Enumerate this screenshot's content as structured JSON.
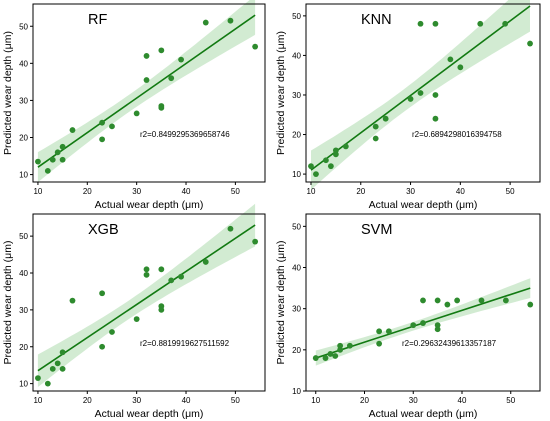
{
  "colors": {
    "points": "#2e8b2e",
    "fit_line": "#127a12",
    "band": "#bfe3bf"
  },
  "chart_data": [
    {
      "type": "scatter",
      "title": "RF",
      "xlabel": "Actual wear depth (μm)",
      "ylabel": "Predicted wear depth (μm)",
      "annotation": "r2=0.8499295369658746",
      "xlim": [
        9,
        56
      ],
      "ylim": [
        8,
        56
      ],
      "xticks": [
        10,
        20,
        30,
        40,
        50
      ],
      "yticks": [
        10,
        20,
        30,
        40,
        50
      ],
      "fit": {
        "x": [
          10,
          54
        ],
        "y": [
          12.0,
          53.0
        ]
      },
      "x": [
        10,
        12,
        13,
        14,
        15,
        15,
        17,
        23,
        23,
        25,
        30,
        32,
        32,
        35,
        35,
        35,
        37,
        39,
        44,
        49,
        54
      ],
      "y": [
        13.5,
        11,
        14,
        16,
        14,
        17.5,
        22,
        19.5,
        24,
        23,
        26.5,
        35.5,
        42,
        28,
        28.5,
        43.5,
        36,
        41,
        51,
        51.5,
        44.5
      ]
    },
    {
      "type": "scatter",
      "title": "KNN",
      "xlabel": "Actual wear depth (μm)",
      "ylabel": "Predicted wear depth (μm)",
      "annotation": "r2=0.6894298016394758",
      "xlim": [
        9,
        56
      ],
      "ylim": [
        8,
        53
      ],
      "xticks": [
        10,
        20,
        30,
        40,
        50
      ],
      "yticks": [
        10,
        20,
        30,
        40,
        50
      ],
      "fit": {
        "x": [
          10,
          54
        ],
        "y": [
          11.0,
          52.5
        ]
      },
      "x": [
        10,
        11,
        13,
        14,
        15,
        15,
        17,
        23,
        23,
        25,
        30,
        32,
        32,
        35,
        35,
        35,
        38,
        40,
        44,
        49,
        54
      ],
      "y": [
        12,
        10,
        13.5,
        12,
        15,
        16,
        17,
        19,
        22,
        24,
        29,
        30.5,
        48,
        30,
        24,
        48,
        39,
        37,
        48,
        48,
        43
      ]
    },
    {
      "type": "scatter",
      "title": "XGB",
      "xlabel": "Actual wear depth (μm)",
      "ylabel": "Predicted wear depth (μm)",
      "annotation": "r2=0.8819919627511592",
      "xlim": [
        9,
        56
      ],
      "ylim": [
        8,
        56
      ],
      "xticks": [
        10,
        20,
        30,
        40,
        50
      ],
      "yticks": [
        10,
        20,
        30,
        40,
        50
      ],
      "fit": {
        "x": [
          10,
          54
        ],
        "y": [
          13.5,
          53.0
        ]
      },
      "x": [
        10,
        12,
        13,
        14,
        15,
        15,
        17,
        23,
        23,
        25,
        30,
        32,
        32,
        35,
        35,
        35,
        37,
        39,
        44,
        49,
        54
      ],
      "y": [
        11.5,
        10,
        14,
        15.5,
        14,
        18.5,
        32.5,
        20,
        34.5,
        24,
        27.5,
        39.5,
        41,
        30,
        31,
        41,
        38,
        39,
        43,
        52,
        48.5
      ]
    },
    {
      "type": "scatter",
      "title": "SVM",
      "xlabel": "Actual wear depth (μm)",
      "ylabel": "Predicted wear depth (μm)",
      "annotation": "r2=0.29632439613357187",
      "xlim": [
        8,
        56
      ],
      "ylim": [
        10,
        53
      ],
      "xticks": [
        10,
        20,
        30,
        40,
        50
      ],
      "yticks": [
        10,
        20,
        30,
        40,
        50
      ],
      "fit": {
        "x": [
          10,
          54
        ],
        "y": [
          18.0,
          35.0
        ]
      },
      "x": [
        10,
        12,
        13,
        14,
        15,
        15,
        17,
        23,
        23,
        25,
        30,
        32,
        32,
        35,
        35,
        35,
        37,
        39,
        44,
        49,
        54
      ],
      "y": [
        18,
        18,
        19,
        18.5,
        20,
        21,
        21,
        21.5,
        24.5,
        24.5,
        26,
        26.5,
        32,
        25,
        26,
        32,
        31,
        32,
        32,
        32,
        31
      ]
    }
  ]
}
